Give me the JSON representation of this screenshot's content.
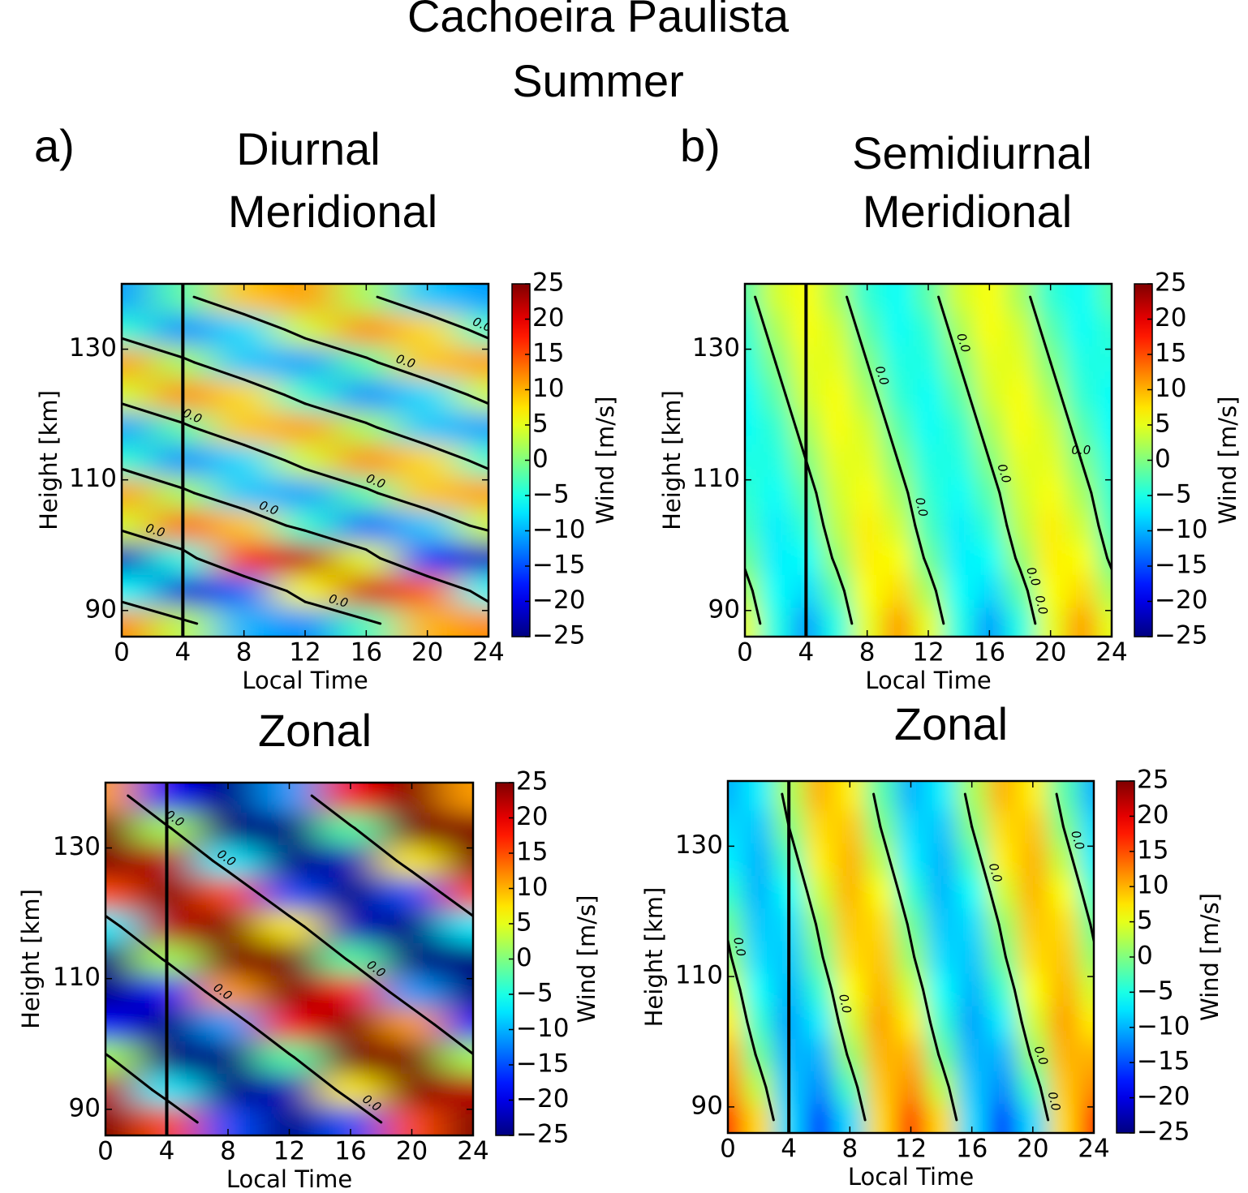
{
  "title": "Cachoeira Paulista",
  "subtitle": "Summer",
  "panels": [
    {
      "label": "a)",
      "title": "Diurnal"
    },
    {
      "label": "b)",
      "title": "Semidiurnal"
    }
  ],
  "chart_data": [
    {
      "type": "heatmap",
      "title": "Meridional",
      "colormap": "jet",
      "xlabel": "Local Time",
      "ylabel": "Height [km]",
      "x": [
        0,
        4,
        8,
        12,
        16,
        20,
        24
      ],
      "y": [
        88,
        93,
        98,
        103,
        108,
        113,
        118,
        123,
        128,
        133,
        138
      ],
      "z": [
        [
          12,
          3,
          -10,
          -12,
          -3,
          10,
          12
        ],
        [
          -6,
          -21,
          -14,
          6,
          21,
          14,
          -6
        ],
        [
          -22,
          -5,
          17,
          22,
          5,
          -17,
          -22
        ],
        [
          4,
          14,
          9,
          -4,
          -14,
          -9,
          4
        ],
        [
          11,
          2,
          -9,
          -11,
          -2,
          9,
          11
        ],
        [
          -4,
          -12,
          -8,
          4,
          12,
          8,
          -4
        ],
        [
          -11,
          -2,
          9,
          11,
          2,
          -9,
          -11
        ],
        [
          4,
          12,
          8,
          -4,
          -12,
          -8,
          4
        ],
        [
          11,
          2,
          -9,
          -11,
          -2,
          9,
          11
        ],
        [
          -4,
          -12,
          -8,
          4,
          12,
          8,
          -4
        ],
        [
          -11,
          -2,
          9,
          11,
          2,
          -9,
          -11
        ]
      ],
      "xlim": [
        0,
        24
      ],
      "ylim": [
        86,
        140
      ],
      "xticks": [
        0,
        4,
        8,
        12,
        16,
        20,
        24
      ],
      "yticks": [
        90,
        110,
        130
      ],
      "vlines": [
        4
      ],
      "contours": [
        {
          "value": 0,
          "label": "0.0"
        }
      ],
      "colorbar": {
        "label": "Wind [m/s]",
        "lim": [
          -25,
          25
        ],
        "ticks": [
          {
            "value": -25,
            "label": "−25"
          },
          {
            "value": -20,
            "label": "−20"
          },
          {
            "value": -15,
            "label": "−15"
          },
          {
            "value": -10,
            "label": "−10"
          },
          {
            "value": -5,
            "label": "−5"
          },
          0,
          5,
          10,
          15,
          20,
          25
        ]
      }
    },
    {
      "type": "heatmap",
      "title": "Meridional",
      "colormap": "jet",
      "xlabel": "Local Time",
      "ylabel": "Height [km]",
      "x": [
        0,
        2,
        4,
        6,
        8,
        10,
        12,
        14,
        16,
        18,
        20,
        22,
        24
      ],
      "y": [
        88,
        93,
        98,
        103,
        108,
        113,
        118,
        123,
        128,
        133,
        138
      ],
      "z": [
        [
          5,
          -5,
          -11,
          -5,
          5,
          11,
          5,
          -5,
          -11,
          -5,
          5,
          11,
          5
        ],
        [
          2,
          -6,
          -8,
          -2,
          6,
          8,
          2,
          -6,
          -8,
          -2,
          6,
          8,
          2
        ],
        [
          -1,
          -7,
          -6,
          1,
          7,
          6,
          -1,
          -7,
          -6,
          1,
          7,
          6,
          -1
        ],
        [
          -3,
          -7,
          -4,
          3,
          7,
          4,
          -3,
          -7,
          -4,
          3,
          7,
          4,
          -3
        ],
        [
          -4,
          -6,
          -2,
          4,
          6,
          2,
          -4,
          -6,
          -2,
          4,
          6,
          2,
          -4
        ],
        [
          -5,
          -5,
          0,
          5,
          5,
          0,
          -5,
          -5,
          0,
          5,
          5,
          0,
          -5
        ],
        [
          -6,
          -4,
          2,
          6,
          4,
          -2,
          -6,
          -4,
          2,
          6,
          4,
          -2,
          -6
        ],
        [
          -6,
          -2,
          4,
          6,
          2,
          -4,
          -6,
          -2,
          4,
          6,
          2,
          -4,
          -6
        ],
        [
          -5,
          0,
          5,
          5,
          0,
          -5,
          -5,
          0,
          5,
          5,
          0,
          -5,
          -5
        ],
        [
          -4,
          2,
          6,
          4,
          -2,
          -6,
          -4,
          2,
          6,
          4,
          -2,
          -6,
          -4
        ],
        [
          -2,
          4,
          6,
          2,
          -4,
          -6,
          -2,
          4,
          6,
          2,
          -4,
          -6,
          -2
        ]
      ],
      "xlim": [
        0,
        24
      ],
      "ylim": [
        86,
        140
      ],
      "xticks": [
        0,
        4,
        8,
        12,
        16,
        20,
        24
      ],
      "yticks": [
        90,
        110,
        130
      ],
      "vlines": [
        4
      ],
      "contours": [
        {
          "value": 0,
          "label": "0.0"
        }
      ],
      "colorbar": {
        "label": "Wind [m/s]",
        "lim": [
          -25,
          25
        ],
        "ticks": [
          {
            "value": -25,
            "label": "−25"
          },
          {
            "value": -20,
            "label": "−20"
          },
          {
            "value": -15,
            "label": "−15"
          },
          {
            "value": -10,
            "label": "−10"
          },
          {
            "value": -5,
            "label": "−5"
          },
          0,
          5,
          10,
          15,
          20,
          25
        ]
      }
    },
    {
      "type": "heatmap",
      "title": "Zonal",
      "colormap": "jet",
      "xlabel": "Local Time",
      "ylabel": "Height [km]",
      "x": [
        0,
        4,
        8,
        12,
        16,
        20,
        24
      ],
      "y": [
        88,
        93,
        98,
        103,
        108,
        113,
        118,
        123,
        128,
        133,
        138
      ],
      "z": [
        [
          30,
          15,
          -15,
          -30,
          -15,
          15,
          30
        ],
        [
          22,
          -7,
          -29,
          -22,
          7,
          29,
          22
        ],
        [
          2,
          -25,
          -27,
          -2,
          25,
          27,
          2
        ],
        [
          -19,
          -30,
          -11,
          19,
          30,
          11,
          -19
        ],
        [
          -30,
          -19,
          11,
          30,
          19,
          -11,
          -30
        ],
        [
          -25,
          2,
          27,
          25,
          -2,
          -27,
          -25
        ],
        [
          -7,
          22,
          29,
          7,
          -22,
          -29,
          -7
        ],
        [
          15,
          30,
          15,
          -15,
          -30,
          -15,
          15
        ],
        [
          29,
          22,
          -7,
          -29,
          -22,
          7,
          29
        ],
        [
          27,
          2,
          -25,
          -27,
          -2,
          25,
          27
        ],
        [
          11,
          -19,
          -30,
          -11,
          19,
          30,
          11
        ]
      ],
      "xlim": [
        0,
        24
      ],
      "ylim": [
        86,
        140
      ],
      "xticks": [
        0,
        4,
        8,
        12,
        16,
        20,
        24
      ],
      "yticks": [
        90,
        110,
        130
      ],
      "vlines": [
        4
      ],
      "contours": [
        {
          "value": 0,
          "label": "0.0"
        }
      ],
      "colorbar": {
        "label": "Wind [m/s]",
        "lim": [
          -25,
          25
        ],
        "ticks": [
          {
            "value": -25,
            "label": "−25"
          },
          {
            "value": -20,
            "label": "−20"
          },
          {
            "value": -15,
            "label": "−15"
          },
          {
            "value": -10,
            "label": "−10"
          },
          {
            "value": -5,
            "label": "−5"
          },
          0,
          5,
          10,
          15,
          20,
          25
        ]
      }
    },
    {
      "type": "heatmap",
      "title": "Zonal",
      "colormap": "jet",
      "xlabel": "Local Time",
      "ylabel": "Height [km]",
      "x": [
        0,
        2,
        4,
        6,
        8,
        10,
        12,
        14,
        16,
        18,
        20,
        22,
        24
      ],
      "y": [
        88,
        93,
        98,
        103,
        108,
        113,
        118,
        123,
        128,
        133,
        138
      ],
      "z": [
        [
          16,
          8,
          -8,
          -16,
          -8,
          8,
          16,
          8,
          -8,
          -16,
          -8,
          8,
          16
        ],
        [
          12,
          3,
          -9,
          -12,
          -3,
          9,
          12,
          3,
          -9,
          -12,
          -3,
          9,
          12
        ],
        [
          10,
          -1,
          -10,
          -10,
          1,
          10,
          10,
          -1,
          -10,
          -10,
          1,
          10,
          10
        ],
        [
          7,
          -4,
          -11,
          -7,
          4,
          11,
          7,
          -4,
          -11,
          -7,
          4,
          11,
          7
        ],
        [
          4,
          -6,
          -10,
          -4,
          6,
          10,
          4,
          -6,
          -10,
          -4,
          6,
          10,
          4
        ],
        [
          1,
          -8,
          -9,
          -1,
          8,
          9,
          1,
          -8,
          -9,
          -1,
          8,
          9,
          1
        ],
        [
          -1,
          -9,
          -8,
          1,
          9,
          8,
          -1,
          -9,
          -8,
          1,
          9,
          8,
          -1
        ],
        [
          -4,
          -10,
          -6,
          4,
          10,
          6,
          -4,
          -10,
          -6,
          4,
          10,
          6,
          -4
        ],
        [
          -7,
          -10,
          -3,
          7,
          10,
          3,
          -7,
          -10,
          -3,
          7,
          10,
          3,
          -7
        ],
        [
          -8,
          -9,
          0,
          8,
          9,
          0,
          -8,
          -9,
          0,
          8,
          9,
          0,
          -8
        ],
        [
          -10,
          -7,
          2,
          10,
          7,
          -2,
          -10,
          -7,
          2,
          10,
          7,
          -2,
          -10
        ]
      ],
      "xlim": [
        0,
        24
      ],
      "ylim": [
        86,
        140
      ],
      "xticks": [
        0,
        4,
        8,
        12,
        16,
        20,
        24
      ],
      "yticks": [
        90,
        110,
        130
      ],
      "vlines": [
        4
      ],
      "contours": [
        {
          "value": 0,
          "label": "0.0"
        }
      ],
      "colorbar": {
        "label": "Wind [m/s]",
        "lim": [
          -25,
          25
        ],
        "ticks": [
          {
            "value": -25,
            "label": "−25"
          },
          {
            "value": -20,
            "label": "−20"
          },
          {
            "value": -15,
            "label": "−15"
          },
          {
            "value": -10,
            "label": "−10"
          },
          {
            "value": -5,
            "label": "−5"
          },
          0,
          5,
          10,
          15,
          20,
          25
        ]
      }
    }
  ]
}
